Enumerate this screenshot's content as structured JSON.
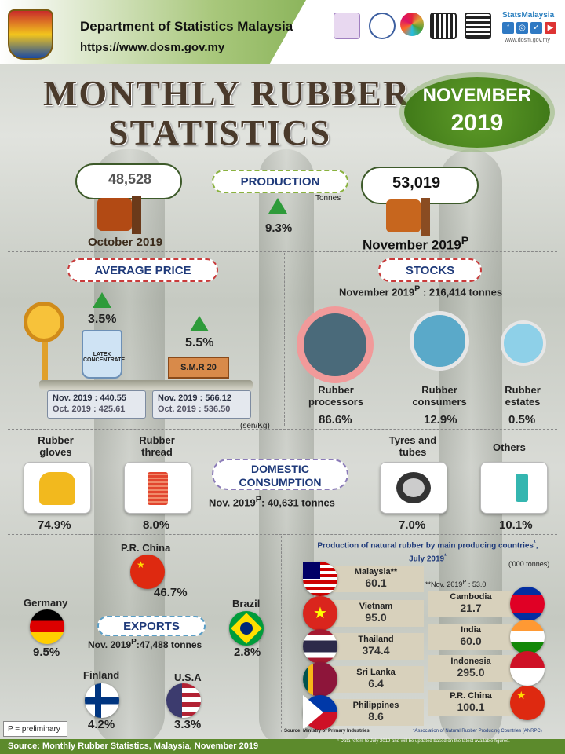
{
  "header": {
    "org": "Department of Statistics Malaysia",
    "url": "https://www.dosm.gov.my",
    "statsmalaysia": "StatsMalaysia",
    "social": [
      "f",
      "◎",
      "✓",
      "▶"
    ],
    "website_small": "www.dosm.gov.my"
  },
  "title": {
    "line1": "MONTHLY RUBBER",
    "line2": "STATISTICS"
  },
  "period": {
    "month": "NOVEMBER",
    "year": "2019"
  },
  "production": {
    "label": "PRODUCTION",
    "unit": "Tonnes",
    "prev_value": "48,528",
    "prev_label": "October 2019",
    "curr_value": "53,019",
    "curr_label": "November 2019",
    "curr_sup": "P",
    "change": "9.3%"
  },
  "price": {
    "label": "AVERAGE  PRICE",
    "latex_change": "3.5%",
    "latex_name": "LATEX CONCENTRATE",
    "smr_change": "5.5%",
    "smr_name": "S.M.R 20",
    "latex_nov": "Nov. 2019 : 440.55",
    "latex_oct": "Oct. 2019 : 425.61",
    "smr_nov": "Nov. 2019 : 566.12",
    "smr_oct": "Oct. 2019 : 536.50",
    "unit": "(sen/Kg)"
  },
  "stocks": {
    "label": "STOCKS",
    "total_prefix": "November 2019",
    "total_sup": "P",
    "total_value": " : 216,414 tonnes",
    "items": [
      {
        "name": "Rubber processors",
        "pct": "86.6%"
      },
      {
        "name": "Rubber consumers",
        "pct": "12.9%"
      },
      {
        "name": "Rubber estates",
        "pct": "0.5%"
      }
    ]
  },
  "consumption": {
    "label": "DOMESTIC CONSUMPTION",
    "total_prefix": "Nov. 2019",
    "total_sup": "P",
    "total_value": ": 40,631 tonnes",
    "items": [
      {
        "name": "Rubber gloves",
        "pct": "74.9%"
      },
      {
        "name": "Rubber thread",
        "pct": "8.0%"
      },
      {
        "name": "Tyres and tubes",
        "pct": "7.0%"
      },
      {
        "name": "Others",
        "pct": "10.1%"
      }
    ]
  },
  "exports": {
    "label": "EXPORTS",
    "total_prefix": "Nov. 2019",
    "total_sup": "P",
    "total_value": ":47,488  tonnes",
    "items": [
      {
        "country": "P.R. China",
        "pct": "46.7%"
      },
      {
        "country": "Germany",
        "pct": "9.5%"
      },
      {
        "country": "Brazil",
        "pct": "2.8%"
      },
      {
        "country": "Finland",
        "pct": "4.2%"
      },
      {
        "country": "U.S.A",
        "pct": "3.3%"
      }
    ]
  },
  "producers": {
    "title": "Production of natural rubber by main producing countries",
    "title_sup": "¹",
    "title_date": "July 2019",
    "title_date_sup": "¹",
    "unit": "('000 tonnes)",
    "malaysia_note": "**Nov. 2019",
    "malaysia_note_sup": "P",
    "malaysia_note_val": " : 53.0",
    "left": [
      {
        "country": "Malaysia**",
        "value": "60.1"
      },
      {
        "country": "Vietnam",
        "value": "95.0"
      },
      {
        "country": "Thailand",
        "value": "374.4"
      },
      {
        "country": "Sri Lanka",
        "value": "6.4"
      },
      {
        "country": "Philippines",
        "value": "8.6"
      }
    ],
    "right": [
      {
        "country": "Cambodia",
        "value": "21.7"
      },
      {
        "country": "India",
        "value": "60.0"
      },
      {
        "country": "Indonesia",
        "value": "295.0"
      },
      {
        "country": "P.R. China",
        "value": "100.1"
      }
    ],
    "source": "Source: Ministry of Primary Industries",
    "anrpc": "*Association of Natural Rubber Producing Countries (ANRPC)",
    "footnote": "¹ Data refers to July 2019 and will be updated based on the latest available figures."
  },
  "preliminary": "P = preliminary",
  "footer": "Source: Monthly Rubber Statistics, Malaysia, November 2019",
  "colors": {
    "accent_green": "#5e9b28",
    "navy": "#1f3a7a",
    "pill_red": "#c93a3a",
    "pill_green": "#8ab23f"
  }
}
